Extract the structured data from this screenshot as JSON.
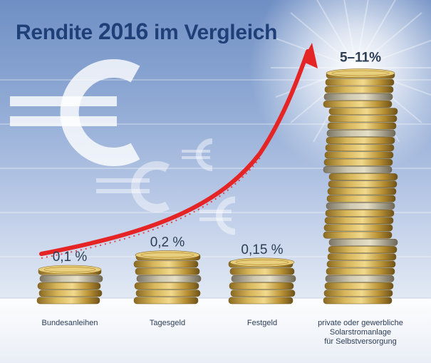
{
  "title": {
    "prefix": "Rendite",
    "year": "2016",
    "suffix": "im Vergleich"
  },
  "chart_data": {
    "type": "bar",
    "title": "Rendite 2016 im Vergleich",
    "categories": [
      [
        "Bundesanleihen"
      ],
      [
        "Tagesgeld"
      ],
      [
        "Festgeld"
      ],
      [
        "private oder gewerbliche",
        "Solarstromanlage",
        "für Selbstversorgung"
      ]
    ],
    "value_labels": [
      "0,1 %",
      "0,2 %",
      "0,15 %",
      "5–11%"
    ],
    "values": [
      0.1,
      0.2,
      0.15,
      11
    ],
    "value_range_max_bar": [
      5,
      11
    ],
    "style": "coin stacks",
    "trend_arrow": true,
    "grid": true,
    "colors": {
      "arrow": "#e52426",
      "text": "#2c3e55",
      "title": "#1e3f78",
      "coin": "#c9a243"
    }
  }
}
